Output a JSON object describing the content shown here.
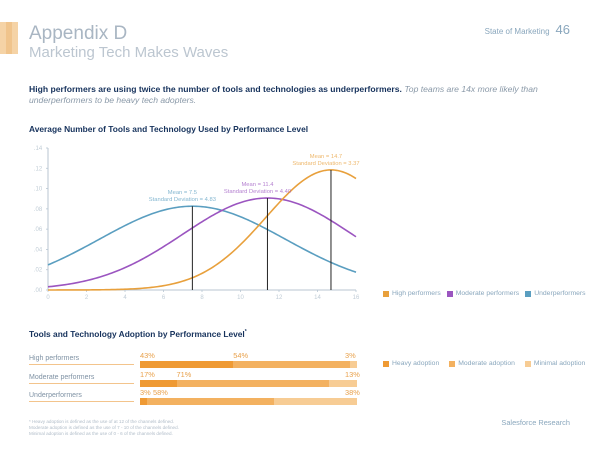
{
  "header": {
    "title": "Appendix D",
    "subtitle": "Marketing Tech Makes Waves",
    "section": "State of Marketing",
    "page_number": "46"
  },
  "lead": {
    "bold": "High performers are using twice the number of tools and technologies as underperformers.",
    "italic": "Top teams are 14x more likely than underperformers to be heavy tech adopters."
  },
  "colors": {
    "high": "#e8a03c",
    "moderate": "#9b55c0",
    "under": "#5a9ec0",
    "heavy": "#ef9a34",
    "moderate_adoption": "#f3b160",
    "minimal": "#f7cc94",
    "mean_line": "#222222",
    "axis": "#b8c6d2"
  },
  "chart_data": [
    {
      "type": "line",
      "title": "Average Number of Tools and Technology Used by Performance Level",
      "xlabel": "",
      "ylabel": "",
      "xlim": [
        0,
        16
      ],
      "ylim": [
        0,
        0.14
      ],
      "x_ticks": [
        "0",
        "2",
        "4",
        "6",
        "8",
        "10",
        "12",
        "14",
        "16"
      ],
      "y_ticks": [
        ".00",
        ".02",
        ".04",
        ".06",
        ".08",
        ".10",
        ".12",
        ".14"
      ],
      "grid": false,
      "legend_position": "bottom-right",
      "series": [
        {
          "name": "High performers",
          "key": "high",
          "mean": 14.7,
          "sd": 3.37,
          "label_line1": "Mean = 14.7",
          "label_line2": "Standard Deviation = 3.37",
          "x_end": 16
        },
        {
          "name": "Moderate performers",
          "key": "moderate",
          "mean": 11.4,
          "sd": 4.4,
          "label_line1": "Mean = 11.4",
          "label_line2": "Standard Deviation = 4.40",
          "x_end": 16
        },
        {
          "name": "Underperformers",
          "key": "under",
          "mean": 7.5,
          "sd": 4.83,
          "label_line1": "Mean = 7.5",
          "label_line2": "Standard Deviation = 4.83",
          "x_end": 16
        }
      ]
    },
    {
      "type": "bar",
      "orientation": "horizontal-stacked",
      "title": "Tools and Technology Adoption by Performance Level",
      "title_marker": "*",
      "categories": [
        "High performers",
        "Moderate performers",
        "Underperformers"
      ],
      "legend_position": "right",
      "series": [
        {
          "name": "Heavy adoption",
          "key": "heavy",
          "values": [
            43,
            17,
            3
          ]
        },
        {
          "name": "Moderate adoption",
          "key": "moderate_adoption",
          "values": [
            54,
            71,
            58
          ]
        },
        {
          "name": "Minimal adoption",
          "key": "minimal",
          "values": [
            3,
            13,
            38
          ]
        }
      ]
    }
  ],
  "footnote": [
    "* Heavy adoption is defined as the use of at 12 of the channels defined.",
    "  Moderate adoption is defined as the use of 7 - 10 of the channels defined.",
    "  Minimal adoption is defined as the use of 0 - 6 of the channels defined."
  ],
  "source": "Salesforce Research"
}
